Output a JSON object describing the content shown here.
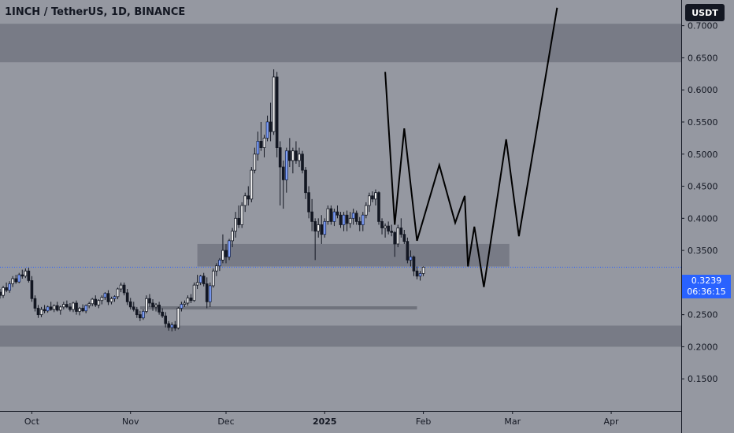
{
  "header": {
    "title": "1INCH / TetherUS, 1D, BINANCE",
    "currency_button": "USDT"
  },
  "last_price": {
    "value": 0.3239,
    "label": "0.3239",
    "countdown": "06:36:15"
  },
  "colors": {
    "background": "#9598a1",
    "zone": "#787b86",
    "zone_dark": "#6f727c",
    "candle_up": "#f4f4f4",
    "candle_down": "#131722",
    "candle_accent": "#2962ff",
    "projection": "#000000"
  },
  "chart_data": {
    "type": "candlestick",
    "y_axis": {
      "min": 0.1,
      "max": 0.74,
      "ticks": [
        0.15,
        0.2,
        0.25,
        0.3,
        0.35,
        0.4,
        0.45,
        0.5,
        0.55,
        0.6,
        0.65,
        0.7
      ],
      "tick_labels": [
        "0.1500",
        "0.2000",
        "0.2500",
        "0.3000",
        "0.3500",
        "0.4000",
        "0.4500",
        "0.5000",
        "0.5500",
        "0.6000",
        "0.6500",
        "0.7000"
      ]
    },
    "x_axis": {
      "tick_labels": [
        "Oct",
        "Nov",
        "Dec",
        "2025",
        "Feb",
        "Mar",
        "Apr"
      ],
      "tick_dates": [
        "2024-10-01",
        "2024-11-01",
        "2024-12-01",
        "2025-01-01",
        "2025-02-01",
        "2025-03-01",
        "2025-04-01"
      ],
      "start": "2024-09-21",
      "end": "2025-04-23"
    },
    "zones": [
      {
        "from": "2024-09-21",
        "to": "2025-04-23",
        "low": 0.643,
        "high": 0.703
      },
      {
        "from": "2024-11-22",
        "to": "2025-02-28",
        "low": 0.325,
        "high": 0.36
      },
      {
        "from": "2024-09-21",
        "to": "2025-04-23",
        "low": 0.2,
        "high": 0.233
      },
      {
        "from": "2024-11-04",
        "to": "2025-01-30",
        "low": 0.258,
        "high": 0.263
      }
    ],
    "candles": [
      [
        "2024-09-21",
        0.285,
        0.29,
        0.275,
        0.28
      ],
      [
        "2024-09-22",
        0.28,
        0.295,
        0.276,
        0.292
      ],
      [
        "2024-09-23",
        0.292,
        0.3,
        0.285,
        0.288
      ],
      [
        "2024-09-24",
        0.288,
        0.302,
        0.284,
        0.298
      ],
      [
        "2024-09-25",
        0.298,
        0.31,
        0.293,
        0.306
      ],
      [
        "2024-09-26",
        0.306,
        0.312,
        0.298,
        0.301
      ],
      [
        "2024-09-27",
        0.301,
        0.315,
        0.299,
        0.312
      ],
      [
        "2024-09-28",
        0.312,
        0.32,
        0.306,
        0.31
      ],
      [
        "2024-09-29",
        0.31,
        0.322,
        0.307,
        0.318
      ],
      [
        "2024-09-30",
        0.318,
        0.323,
        0.3,
        0.303
      ],
      [
        "2024-10-01",
        0.303,
        0.31,
        0.27,
        0.275
      ],
      [
        "2024-10-02",
        0.275,
        0.28,
        0.255,
        0.26
      ],
      [
        "2024-10-03",
        0.26,
        0.265,
        0.245,
        0.25
      ],
      [
        "2024-10-04",
        0.25,
        0.262,
        0.246,
        0.258
      ],
      [
        "2024-10-05",
        0.258,
        0.265,
        0.252,
        0.256
      ],
      [
        "2024-10-06",
        0.256,
        0.264,
        0.253,
        0.262
      ],
      [
        "2024-10-07",
        0.262,
        0.27,
        0.256,
        0.258
      ],
      [
        "2024-10-08",
        0.258,
        0.266,
        0.254,
        0.264
      ],
      [
        "2024-10-09",
        0.264,
        0.27,
        0.255,
        0.257
      ],
      [
        "2024-10-10",
        0.257,
        0.264,
        0.25,
        0.262
      ],
      [
        "2024-10-11",
        0.262,
        0.27,
        0.258,
        0.266
      ],
      [
        "2024-10-12",
        0.266,
        0.272,
        0.26,
        0.262
      ],
      [
        "2024-10-13",
        0.262,
        0.268,
        0.255,
        0.258
      ],
      [
        "2024-10-14",
        0.258,
        0.27,
        0.254,
        0.268
      ],
      [
        "2024-10-15",
        0.268,
        0.272,
        0.25,
        0.255
      ],
      [
        "2024-10-16",
        0.255,
        0.262,
        0.249,
        0.26
      ],
      [
        "2024-10-17",
        0.26,
        0.266,
        0.254,
        0.256
      ],
      [
        "2024-10-18",
        0.256,
        0.266,
        0.252,
        0.264
      ],
      [
        "2024-10-19",
        0.264,
        0.27,
        0.26,
        0.267
      ],
      [
        "2024-10-20",
        0.267,
        0.276,
        0.263,
        0.274
      ],
      [
        "2024-10-21",
        0.274,
        0.28,
        0.262,
        0.265
      ],
      [
        "2024-10-22",
        0.265,
        0.274,
        0.26,
        0.272
      ],
      [
        "2024-10-23",
        0.272,
        0.28,
        0.266,
        0.277
      ],
      [
        "2024-10-24",
        0.277,
        0.285,
        0.273,
        0.283
      ],
      [
        "2024-10-25",
        0.283,
        0.288,
        0.265,
        0.27
      ],
      [
        "2024-10-26",
        0.27,
        0.278,
        0.266,
        0.275
      ],
      [
        "2024-10-27",
        0.275,
        0.28,
        0.27,
        0.278
      ],
      [
        "2024-10-28",
        0.278,
        0.292,
        0.274,
        0.29
      ],
      [
        "2024-10-29",
        0.29,
        0.3,
        0.285,
        0.296
      ],
      [
        "2024-10-30",
        0.296,
        0.3,
        0.28,
        0.284
      ],
      [
        "2024-10-31",
        0.284,
        0.29,
        0.265,
        0.27
      ],
      [
        "2024-11-01",
        0.27,
        0.276,
        0.258,
        0.262
      ],
      [
        "2024-11-02",
        0.262,
        0.27,
        0.255,
        0.258
      ],
      [
        "2024-11-03",
        0.258,
        0.262,
        0.245,
        0.25
      ],
      [
        "2024-11-04",
        0.25,
        0.256,
        0.24,
        0.245
      ],
      [
        "2024-11-05",
        0.245,
        0.258,
        0.242,
        0.255
      ],
      [
        "2024-11-06",
        0.255,
        0.28,
        0.252,
        0.275
      ],
      [
        "2024-11-07",
        0.275,
        0.282,
        0.262,
        0.268
      ],
      [
        "2024-11-08",
        0.268,
        0.274,
        0.256,
        0.262
      ],
      [
        "2024-11-09",
        0.262,
        0.268,
        0.255,
        0.265
      ],
      [
        "2024-11-10",
        0.265,
        0.27,
        0.25,
        0.254
      ],
      [
        "2024-11-11",
        0.254,
        0.26,
        0.245,
        0.248
      ],
      [
        "2024-11-12",
        0.248,
        0.254,
        0.23,
        0.236
      ],
      [
        "2024-11-13",
        0.236,
        0.24,
        0.225,
        0.23
      ],
      [
        "2024-11-14",
        0.23,
        0.238,
        0.224,
        0.234
      ],
      [
        "2024-11-15",
        0.234,
        0.24,
        0.225,
        0.229
      ],
      [
        "2024-11-16",
        0.229,
        0.262,
        0.227,
        0.26
      ],
      [
        "2024-11-17",
        0.26,
        0.27,
        0.255,
        0.266
      ],
      [
        "2024-11-18",
        0.266,
        0.272,
        0.262,
        0.268
      ],
      [
        "2024-11-19",
        0.268,
        0.28,
        0.264,
        0.276
      ],
      [
        "2024-11-20",
        0.276,
        0.282,
        0.268,
        0.272
      ],
      [
        "2024-11-21",
        0.272,
        0.3,
        0.27,
        0.296
      ],
      [
        "2024-11-22",
        0.296,
        0.312,
        0.29,
        0.3
      ],
      [
        "2024-11-23",
        0.3,
        0.312,
        0.296,
        0.31
      ],
      [
        "2024-11-24",
        0.31,
        0.315,
        0.294,
        0.298
      ],
      [
        "2024-11-25",
        0.298,
        0.308,
        0.26,
        0.27
      ],
      [
        "2024-11-26",
        0.27,
        0.3,
        0.262,
        0.295
      ],
      [
        "2024-11-27",
        0.295,
        0.322,
        0.292,
        0.318
      ],
      [
        "2024-11-28",
        0.318,
        0.33,
        0.31,
        0.326
      ],
      [
        "2024-11-29",
        0.326,
        0.338,
        0.318,
        0.335
      ],
      [
        "2024-11-30",
        0.335,
        0.375,
        0.33,
        0.35
      ],
      [
        "2024-12-01",
        0.35,
        0.36,
        0.33,
        0.34
      ],
      [
        "2024-12-02",
        0.34,
        0.368,
        0.335,
        0.365
      ],
      [
        "2024-12-03",
        0.365,
        0.385,
        0.355,
        0.38
      ],
      [
        "2024-12-04",
        0.38,
        0.41,
        0.37,
        0.4
      ],
      [
        "2024-12-05",
        0.4,
        0.42,
        0.385,
        0.39
      ],
      [
        "2024-12-06",
        0.39,
        0.425,
        0.385,
        0.42
      ],
      [
        "2024-12-07",
        0.42,
        0.44,
        0.41,
        0.435
      ],
      [
        "2024-12-08",
        0.435,
        0.45,
        0.42,
        0.43
      ],
      [
        "2024-12-09",
        0.43,
        0.48,
        0.425,
        0.475
      ],
      [
        "2024-12-10",
        0.475,
        0.51,
        0.47,
        0.5
      ],
      [
        "2024-12-11",
        0.5,
        0.535,
        0.49,
        0.52
      ],
      [
        "2024-12-12",
        0.52,
        0.55,
        0.505,
        0.51
      ],
      [
        "2024-12-13",
        0.51,
        0.53,
        0.495,
        0.525
      ],
      [
        "2024-12-14",
        0.525,
        0.56,
        0.52,
        0.55
      ],
      [
        "2024-12-15",
        0.55,
        0.58,
        0.52,
        0.535
      ],
      [
        "2024-12-16",
        0.535,
        0.632,
        0.53,
        0.62
      ],
      [
        "2024-12-17",
        0.62,
        0.628,
        0.495,
        0.51
      ],
      [
        "2024-12-18",
        0.51,
        0.52,
        0.42,
        0.48
      ],
      [
        "2024-12-19",
        0.48,
        0.49,
        0.415,
        0.46
      ],
      [
        "2024-12-20",
        0.46,
        0.51,
        0.44,
        0.505
      ],
      [
        "2024-12-21",
        0.505,
        0.525,
        0.48,
        0.49
      ],
      [
        "2024-12-22",
        0.49,
        0.51,
        0.47,
        0.505
      ],
      [
        "2024-12-23",
        0.505,
        0.52,
        0.485,
        0.49
      ],
      [
        "2024-12-24",
        0.49,
        0.51,
        0.48,
        0.5
      ],
      [
        "2024-12-25",
        0.5,
        0.505,
        0.47,
        0.475
      ],
      [
        "2024-12-26",
        0.475,
        0.48,
        0.43,
        0.44
      ],
      [
        "2024-12-27",
        0.44,
        0.45,
        0.4,
        0.41
      ],
      [
        "2024-12-28",
        0.41,
        0.43,
        0.38,
        0.395
      ],
      [
        "2024-12-29",
        0.395,
        0.4,
        0.335,
        0.38
      ],
      [
        "2024-12-30",
        0.38,
        0.4,
        0.37,
        0.39
      ],
      [
        "2024-12-31",
        0.39,
        0.405,
        0.36,
        0.375
      ],
      [
        "2025-01-01",
        0.375,
        0.4,
        0.37,
        0.395
      ],
      [
        "2025-01-02",
        0.395,
        0.42,
        0.39,
        0.415
      ],
      [
        "2025-01-03",
        0.415,
        0.42,
        0.39,
        0.395
      ],
      [
        "2025-01-04",
        0.395,
        0.415,
        0.388,
        0.41
      ],
      [
        "2025-01-05",
        0.41,
        0.42,
        0.4,
        0.405
      ],
      [
        "2025-01-06",
        0.405,
        0.41,
        0.385,
        0.39
      ],
      [
        "2025-01-07",
        0.39,
        0.41,
        0.38,
        0.405
      ],
      [
        "2025-01-08",
        0.405,
        0.412,
        0.38,
        0.392
      ],
      [
        "2025-01-09",
        0.392,
        0.41,
        0.385,
        0.4
      ],
      [
        "2025-01-10",
        0.4,
        0.415,
        0.39,
        0.408
      ],
      [
        "2025-01-11",
        0.408,
        0.412,
        0.39,
        0.395
      ],
      [
        "2025-01-12",
        0.395,
        0.402,
        0.38,
        0.39
      ],
      [
        "2025-01-13",
        0.39,
        0.41,
        0.38,
        0.405
      ],
      [
        "2025-01-14",
        0.405,
        0.425,
        0.4,
        0.42
      ],
      [
        "2025-01-15",
        0.42,
        0.44,
        0.41,
        0.435
      ],
      [
        "2025-01-16",
        0.435,
        0.442,
        0.425,
        0.43
      ],
      [
        "2025-01-17",
        0.43,
        0.445,
        0.42,
        0.44
      ],
      [
        "2025-01-18",
        0.44,
        0.442,
        0.39,
        0.395
      ],
      [
        "2025-01-19",
        0.395,
        0.4,
        0.375,
        0.385
      ],
      [
        "2025-01-20",
        0.385,
        0.392,
        0.37,
        0.388
      ],
      [
        "2025-01-21",
        0.388,
        0.395,
        0.375,
        0.38
      ],
      [
        "2025-01-22",
        0.38,
        0.39,
        0.372,
        0.378
      ],
      [
        "2025-01-23",
        0.378,
        0.38,
        0.34,
        0.36
      ],
      [
        "2025-01-24",
        0.36,
        0.39,
        0.355,
        0.385
      ],
      [
        "2025-01-25",
        0.385,
        0.4,
        0.37,
        0.375
      ],
      [
        "2025-01-26",
        0.375,
        0.382,
        0.36,
        0.364
      ],
      [
        "2025-01-27",
        0.364,
        0.37,
        0.33,
        0.335
      ],
      [
        "2025-01-28",
        0.335,
        0.35,
        0.325,
        0.34
      ],
      [
        "2025-01-29",
        0.34,
        0.342,
        0.31,
        0.318
      ],
      [
        "2025-01-30",
        0.318,
        0.325,
        0.305,
        0.31
      ],
      [
        "2025-01-31",
        0.31,
        0.318,
        0.303,
        0.314
      ],
      [
        "2025-02-01",
        0.314,
        0.325,
        0.31,
        0.3239
      ]
    ],
    "projection_path": [
      [
        "2025-01-20",
        0.628
      ],
      [
        "2025-01-23",
        0.39
      ],
      [
        "2025-01-26",
        0.54
      ],
      [
        "2025-01-30",
        0.365
      ],
      [
        "2025-02-06",
        0.483
      ],
      [
        "2025-02-11",
        0.393
      ],
      [
        "2025-02-14",
        0.435
      ],
      [
        "2025-02-15",
        0.325
      ],
      [
        "2025-02-17",
        0.387
      ],
      [
        "2025-02-20",
        0.293
      ],
      [
        "2025-02-27",
        0.523
      ],
      [
        "2025-03-03",
        0.372
      ],
      [
        "2025-03-15",
        0.728
      ]
    ]
  }
}
